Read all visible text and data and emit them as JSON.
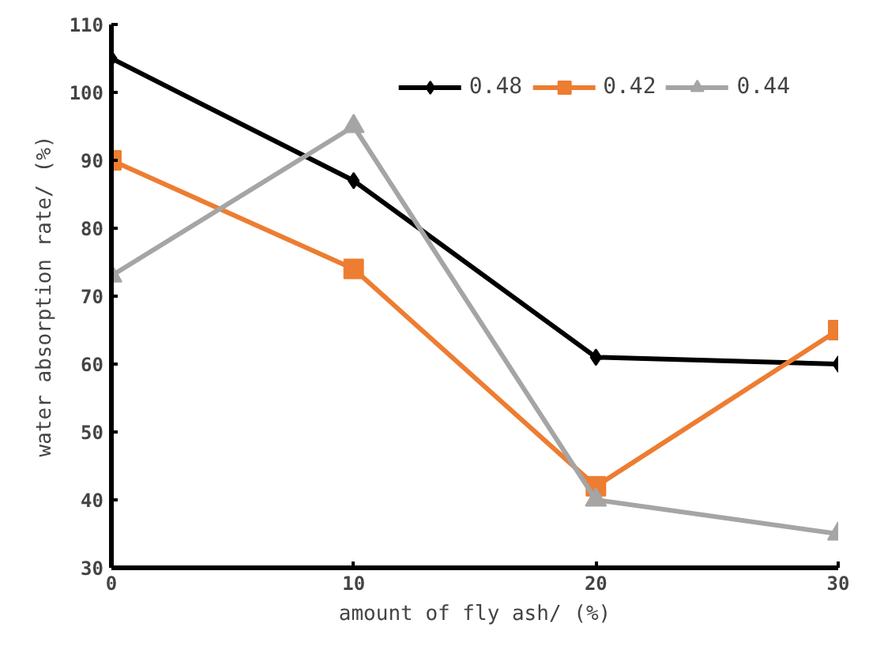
{
  "chart_data": {
    "type": "line",
    "xlabel": "amount of fly ash/ (%)",
    "ylabel": "water absorption rate/ (%)",
    "x": [
      0,
      10,
      20,
      30
    ],
    "xlim": [
      0,
      30
    ],
    "xticks": [
      0,
      10,
      20,
      30
    ],
    "ylim": [
      30,
      110
    ],
    "yticks": [
      30,
      40,
      50,
      60,
      70,
      80,
      90,
      100,
      110
    ],
    "grid": false,
    "legend": "top right",
    "line_style": "solid",
    "series": [
      {
        "name": "0.48",
        "color": "#000000",
        "marker": "diamond",
        "values": [
          105,
          87,
          61,
          60
        ]
      },
      {
        "name": "0.42",
        "color": "#ed7d31",
        "marker": "square",
        "values": [
          90,
          74,
          42,
          65
        ]
      },
      {
        "name": "0.44",
        "color": "#a5a5a5",
        "marker": "triangle",
        "values": [
          73,
          95,
          40,
          35
        ]
      }
    ]
  }
}
